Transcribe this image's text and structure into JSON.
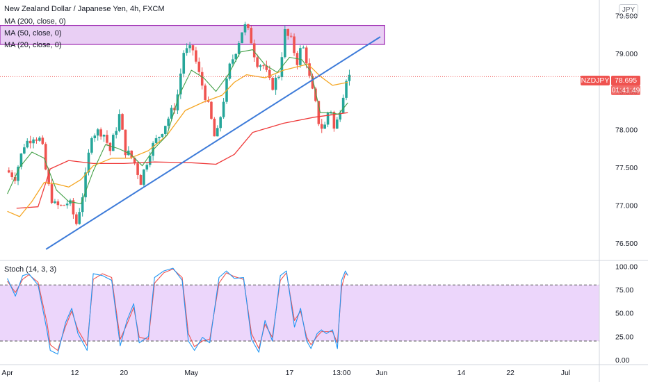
{
  "header": {
    "symbol_title": "New Zealand Dollar / Japanese Yen, 4h, FXCM",
    "currency": "JPY"
  },
  "legend": {
    "ma200": "MA (200, close, 0)",
    "ma50": "MA (50, close, 0)",
    "ma20": "MA (20, close, 0)",
    "stoch": "Stoch (14, 3, 3)"
  },
  "last_price": {
    "symbol": "NZDJPY",
    "price": "78.695",
    "countdown": "01:41:49",
    "value": 78.695
  },
  "colors": {
    "up": "#26a69a",
    "down": "#ef5350",
    "ma200": "#ef3b3b",
    "ma50": "#f5a623",
    "ma20": "#43a047",
    "trendline": "#3d7bd9",
    "zone_fill": "#e2bff0",
    "zone_border": "#9c27b0",
    "stoch_k": "#2196f3",
    "stoch_d": "#ef5350",
    "stoch_band": "#ead1fb"
  },
  "chart_data": [
    {
      "type": "candlestick",
      "pair": "NZD/JPY",
      "timeframe": "4h",
      "y_ticks": [
        "79.500",
        "79.000",
        "78.500",
        "78.000",
        "77.500",
        "77.000",
        "76.500"
      ],
      "ylim": [
        76.3,
        79.65
      ],
      "x_ticks": [
        {
          "label": "Apr",
          "day": 0
        },
        {
          "label": "12",
          "day": 11
        },
        {
          "label": "20",
          "day": 19
        },
        {
          "label": "May",
          "day": 30
        },
        {
          "label": "17",
          "day": 46
        },
        {
          "label": "13:00",
          "day": 54.5
        },
        {
          "label": "Jun",
          "day": 61
        },
        {
          "label": "14",
          "day": 74
        },
        {
          "label": "22",
          "day": 82
        },
        {
          "label": "Jul",
          "day": 91
        }
      ],
      "xlim": [
        -1.2,
        96.5
      ],
      "last_day": 55.5,
      "price_path": [
        [
          0,
          77.46
        ],
        [
          1.5,
          77.38
        ],
        [
          3,
          77.8
        ],
        [
          4.5,
          77.92
        ],
        [
          5.8,
          77.85
        ],
        [
          6.8,
          77.3
        ],
        [
          7.8,
          77.0
        ],
        [
          9,
          76.98
        ],
        [
          10.3,
          77.05
        ],
        [
          11.5,
          76.76
        ],
        [
          12.8,
          77.25
        ],
        [
          14,
          77.95
        ],
        [
          15.8,
          77.98
        ],
        [
          17,
          77.72
        ],
        [
          18.5,
          78.18
        ],
        [
          19.5,
          77.72
        ],
        [
          20.8,
          77.6
        ],
        [
          22,
          77.32
        ],
        [
          23.5,
          77.72
        ],
        [
          25,
          77.92
        ],
        [
          26.5,
          78.15
        ],
        [
          27.8,
          78.35
        ],
        [
          29,
          79.02
        ],
        [
          30.5,
          79.05
        ],
        [
          31.5,
          78.72
        ],
        [
          32.5,
          78.45
        ],
        [
          33.3,
          78.2
        ],
        [
          34.2,
          77.82
        ],
        [
          35.5,
          78.4
        ],
        [
          36.5,
          78.82
        ],
        [
          37.8,
          79.12
        ],
        [
          38.8,
          79.38
        ],
        [
          39.8,
          79.24
        ],
        [
          40.8,
          78.9
        ],
        [
          42,
          78.84
        ],
        [
          43.3,
          78.55
        ],
        [
          44.5,
          78.72
        ],
        [
          45.5,
          79.28
        ],
        [
          46.5,
          79.16
        ],
        [
          47.5,
          78.9
        ],
        [
          48.3,
          79.12
        ],
        [
          49,
          78.92
        ],
        [
          49.6,
          78.62
        ],
        [
          50.5,
          78.32
        ],
        [
          51.2,
          78.02
        ],
        [
          52.1,
          78.05
        ],
        [
          52.8,
          78.36
        ],
        [
          53.5,
          78.0
        ],
        [
          54.2,
          78.15
        ],
        [
          54.7,
          78.38
        ],
        [
          55.1,
          78.52
        ],
        [
          55.5,
          78.695
        ]
      ],
      "ma200_path": [
        [
          1.5,
          76.96
        ],
        [
          5,
          76.98
        ],
        [
          7,
          77.48
        ],
        [
          10,
          77.59
        ],
        [
          14,
          77.55
        ],
        [
          19,
          77.55
        ],
        [
          24,
          77.57
        ],
        [
          30,
          77.56
        ],
        [
          34,
          77.54
        ],
        [
          37,
          77.67
        ],
        [
          40,
          77.96
        ],
        [
          45,
          78.08
        ],
        [
          50,
          78.16
        ],
        [
          55.5,
          78.22
        ]
      ],
      "ma50_path": [
        [
          0,
          76.92
        ],
        [
          2,
          76.85
        ],
        [
          4,
          77.05
        ],
        [
          6,
          77.3
        ],
        [
          8,
          77.28
        ],
        [
          10,
          77.24
        ],
        [
          12,
          77.34
        ],
        [
          14,
          77.52
        ],
        [
          17,
          77.62
        ],
        [
          20,
          77.62
        ],
        [
          23,
          77.72
        ],
        [
          26,
          77.92
        ],
        [
          29,
          78.25
        ],
        [
          32,
          78.36
        ],
        [
          35,
          78.45
        ],
        [
          37,
          78.62
        ],
        [
          39,
          78.72
        ],
        [
          42,
          78.68
        ],
        [
          45,
          78.78
        ],
        [
          47,
          78.82
        ],
        [
          49,
          78.86
        ],
        [
          51,
          78.7
        ],
        [
          53,
          78.58
        ],
        [
          55.5,
          78.62
        ]
      ],
      "ma20_path": [
        [
          0,
          77.15
        ],
        [
          2,
          77.5
        ],
        [
          4,
          77.7
        ],
        [
          6,
          77.62
        ],
        [
          8,
          77.2
        ],
        [
          10,
          77.05
        ],
        [
          12,
          77.02
        ],
        [
          14,
          77.45
        ],
        [
          16,
          77.8
        ],
        [
          18,
          77.75
        ],
        [
          20,
          77.68
        ],
        [
          22,
          77.52
        ],
        [
          24,
          77.75
        ],
        [
          26,
          77.92
        ],
        [
          28,
          78.45
        ],
        [
          30,
          78.78
        ],
        [
          32,
          78.68
        ],
        [
          34,
          78.5
        ],
        [
          36,
          78.72
        ],
        [
          38,
          79.02
        ],
        [
          40,
          79.05
        ],
        [
          42,
          78.85
        ],
        [
          44,
          78.75
        ],
        [
          46,
          78.95
        ],
        [
          48,
          78.92
        ],
        [
          49.5,
          78.76
        ],
        [
          51,
          78.22
        ],
        [
          52.5,
          78.22
        ],
        [
          54,
          78.2
        ],
        [
          55.5,
          78.35
        ]
      ],
      "resistance_zone": {
        "day_start": -1.2,
        "day_end": 61.5,
        "price_low": 79.12,
        "price_high": 79.37
      },
      "trendline": {
        "start": [
          6.3,
          76.42
        ],
        "end": [
          60.8,
          79.22
        ]
      }
    },
    {
      "type": "line",
      "name": "Stoch (14, 3, 3)",
      "y_ticks": [
        "100.00",
        "75.00",
        "50.00",
        "25.00",
        "0.00"
      ],
      "ylim": [
        -3,
        104
      ],
      "band": [
        20,
        80
      ],
      "k_path": [
        [
          0,
          87
        ],
        [
          1.3,
          68
        ],
        [
          2.5,
          90
        ],
        [
          3.5,
          92
        ],
        [
          5,
          80
        ],
        [
          6.5,
          30
        ],
        [
          7,
          10
        ],
        [
          8.2,
          6
        ],
        [
          9.5,
          40
        ],
        [
          10.5,
          55
        ],
        [
          11.5,
          28
        ],
        [
          13,
          10
        ],
        [
          14,
          92
        ],
        [
          15.5,
          90
        ],
        [
          17,
          85
        ],
        [
          18.4,
          15
        ],
        [
          19.5,
          42
        ],
        [
          20.6,
          60
        ],
        [
          21.5,
          18
        ],
        [
          23,
          25
        ],
        [
          24,
          88
        ],
        [
          25.5,
          95
        ],
        [
          27,
          98
        ],
        [
          28.5,
          85
        ],
        [
          29.5,
          20
        ],
        [
          30.5,
          10
        ],
        [
          31.8,
          24
        ],
        [
          33,
          18
        ],
        [
          34.5,
          88
        ],
        [
          35.7,
          95
        ],
        [
          37,
          87
        ],
        [
          38.5,
          88
        ],
        [
          39.8,
          22
        ],
        [
          41,
          8
        ],
        [
          42,
          42
        ],
        [
          43.2,
          20
        ],
        [
          44.5,
          90
        ],
        [
          45.5,
          95
        ],
        [
          46.8,
          35
        ],
        [
          47.8,
          55
        ],
        [
          48.8,
          20
        ],
        [
          49.5,
          12
        ],
        [
          50.5,
          28
        ],
        [
          51.2,
          32
        ],
        [
          52,
          28
        ],
        [
          53,
          32
        ],
        [
          53.8,
          12
        ],
        [
          54.5,
          85
        ],
        [
          55.1,
          95
        ],
        [
          55.5,
          90
        ]
      ],
      "d_path": [
        [
          0,
          84
        ],
        [
          1.3,
          72
        ],
        [
          2.5,
          86
        ],
        [
          3.5,
          91
        ],
        [
          5,
          83
        ],
        [
          6.5,
          38
        ],
        [
          7,
          16
        ],
        [
          8.2,
          10
        ],
        [
          9.5,
          36
        ],
        [
          10.5,
          52
        ],
        [
          11.5,
          32
        ],
        [
          13,
          15
        ],
        [
          14,
          86
        ],
        [
          15.5,
          92
        ],
        [
          17,
          88
        ],
        [
          18.4,
          22
        ],
        [
          19.5,
          38
        ],
        [
          20.6,
          56
        ],
        [
          21.5,
          24
        ],
        [
          23,
          22
        ],
        [
          24,
          82
        ],
        [
          25.5,
          93
        ],
        [
          27,
          97
        ],
        [
          28.5,
          88
        ],
        [
          29.5,
          28
        ],
        [
          30.5,
          14
        ],
        [
          31.8,
          20
        ],
        [
          33,
          22
        ],
        [
          34.5,
          82
        ],
        [
          35.7,
          93
        ],
        [
          37,
          89
        ],
        [
          38.5,
          86
        ],
        [
          39.8,
          28
        ],
        [
          41,
          12
        ],
        [
          42,
          38
        ],
        [
          43.2,
          24
        ],
        [
          44.5,
          85
        ],
        [
          45.5,
          93
        ],
        [
          46.8,
          42
        ],
        [
          47.8,
          52
        ],
        [
          48.8,
          24
        ],
        [
          49.5,
          16
        ],
        [
          50.5,
          25
        ],
        [
          51.2,
          30
        ],
        [
          52,
          30
        ],
        [
          53,
          30
        ],
        [
          53.8,
          18
        ],
        [
          54.5,
          78
        ],
        [
          55.1,
          92
        ],
        [
          55.5,
          91
        ]
      ]
    }
  ]
}
